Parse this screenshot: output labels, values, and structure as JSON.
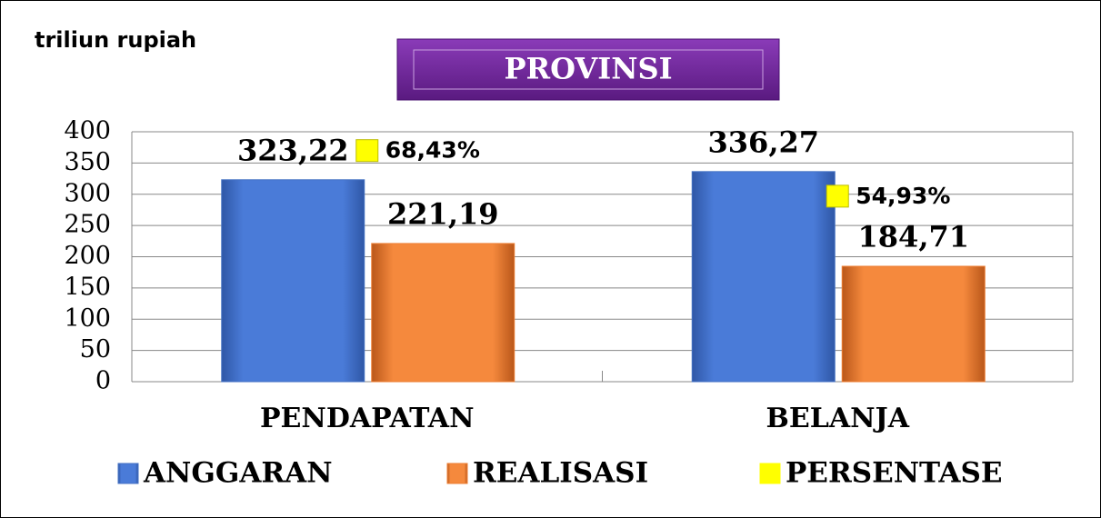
{
  "chart_data": {
    "type": "bar",
    "unit_label": "triliun rupiah",
    "title": "PROVINSI",
    "categories": [
      "PENDAPATAN",
      "BELANJA"
    ],
    "series": [
      {
        "name": "ANGGARAN",
        "color": "#4472c4",
        "values": [
          323.22,
          336.27
        ],
        "value_labels": [
          "323,22",
          "336,27"
        ]
      },
      {
        "name": "REALISASI",
        "color": "#ed7d31",
        "values": [
          221.19,
          184.71
        ],
        "value_labels": [
          "221,19",
          "184,71"
        ]
      },
      {
        "name": "PERSENTASE",
        "color": "#ffff00",
        "type": "scatter",
        "axis": "y2",
        "values": [
          68.43,
          54.93
        ],
        "value_labels": [
          "68,43%",
          "54,93%"
        ]
      }
    ],
    "ylim": [
      0,
      400
    ],
    "yticks": [
      0,
      50,
      100,
      150,
      200,
      250,
      300,
      350,
      400
    ],
    "y2lim": [
      0,
      74
    ],
    "grid": true,
    "legend": "bottom"
  }
}
